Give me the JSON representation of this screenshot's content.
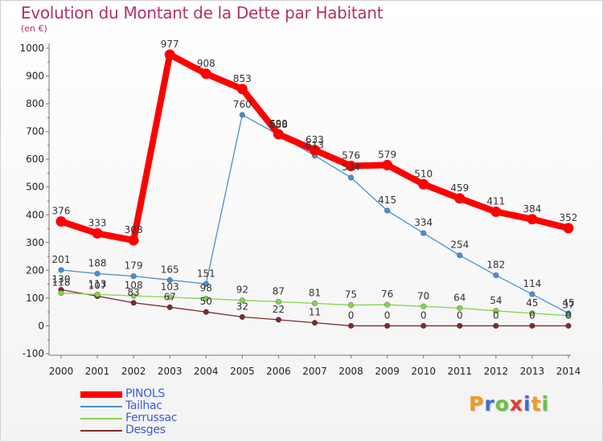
{
  "chart_data": {
    "type": "line",
    "title": "Evolution du Montant de la Dette par Habitant",
    "subtitle": "(en €)",
    "xlabel": "",
    "ylabel": "",
    "x": [
      "2000",
      "2001",
      "2002",
      "2003",
      "2004",
      "2005",
      "2006",
      "2007",
      "2008",
      "2009",
      "2010",
      "2011",
      "2012",
      "2013",
      "2014"
    ],
    "ylim": [
      -100,
      1000
    ],
    "yticks": [
      -100,
      0,
      100,
      200,
      300,
      400,
      500,
      600,
      700,
      800,
      900,
      1000
    ],
    "grid": false,
    "legend_position": "bottom-left",
    "series": [
      {
        "name": "PINOLS",
        "color": "#ff0000",
        "values": [
          376,
          333,
          308,
          977,
          908,
          853,
          690,
          633,
          576,
          579,
          510,
          459,
          411,
          384,
          352
        ]
      },
      {
        "name": "Tailhac",
        "color": "#4a8fd0",
        "values": [
          201,
          188,
          179,
          165,
          151,
          760,
          688,
          613,
          534,
          415,
          334,
          254,
          182,
          114,
          45
        ]
      },
      {
        "name": "Ferrussac",
        "color": "#86d450",
        "values": [
          118,
          113,
          108,
          103,
          98,
          92,
          87,
          81,
          75,
          76,
          70,
          64,
          54,
          45,
          37
        ]
      },
      {
        "name": "Desges",
        "color": "#7a2d2d",
        "values": [
          130,
          107,
          83,
          67,
          50,
          32,
          22,
          11,
          0,
          0,
          0,
          0,
          0,
          0,
          0
        ]
      }
    ]
  },
  "logo": {
    "letters": [
      {
        "char": "P",
        "color": "#f39a1f"
      },
      {
        "char": "r",
        "color": "#3c6ed2"
      },
      {
        "char": "o",
        "color": "#6cc043"
      },
      {
        "char": "x",
        "color": "#e63a2b"
      },
      {
        "char": "i",
        "color": "#3c6ed2"
      },
      {
        "char": "t",
        "color": "#f39a1f"
      },
      {
        "char": "i",
        "color": "#6cc043"
      }
    ]
  }
}
